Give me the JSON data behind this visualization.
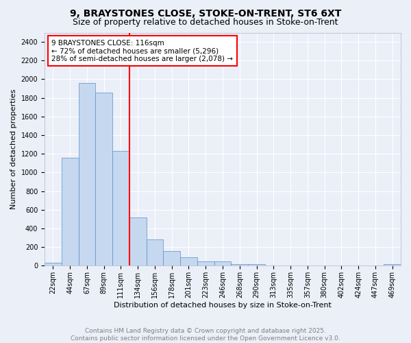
{
  "title_line1": "9, BRAYSTONES CLOSE, STOKE-ON-TRENT, ST6 6XT",
  "title_line2": "Size of property relative to detached houses in Stoke-on-Trent",
  "xlabel": "Distribution of detached houses by size in Stoke-on-Trent",
  "ylabel": "Number of detached properties",
  "bar_labels": [
    "22sqm",
    "44sqm",
    "67sqm",
    "89sqm",
    "111sqm",
    "134sqm",
    "156sqm",
    "178sqm",
    "201sqm",
    "223sqm",
    "246sqm",
    "268sqm",
    "290sqm",
    "313sqm",
    "335sqm",
    "357sqm",
    "380sqm",
    "402sqm",
    "424sqm",
    "447sqm",
    "469sqm"
  ],
  "bar_values": [
    30,
    1160,
    1960,
    1860,
    1230,
    520,
    280,
    155,
    95,
    50,
    50,
    20,
    15,
    5,
    2,
    2,
    2,
    2,
    1,
    1,
    15
  ],
  "bar_color": "#c5d8f0",
  "bar_edgecolor": "#5b8fc3",
  "bg_color": "#eaeff8",
  "grid_color": "#ffffff",
  "red_line_x": 4.5,
  "annotation_text": "9 BRAYSTONES CLOSE: 116sqm\n← 72% of detached houses are smaller (5,296)\n28% of semi-detached houses are larger (2,078) →",
  "annotation_box_edgecolor": "red",
  "annotation_box_facecolor": "white",
  "vline_color": "red",
  "ylim": [
    0,
    2500
  ],
  "yticks": [
    0,
    200,
    400,
    600,
    800,
    1000,
    1200,
    1400,
    1600,
    1800,
    2000,
    2200,
    2400
  ],
  "footer_line1": "Contains HM Land Registry data © Crown copyright and database right 2025.",
  "footer_line2": "Contains public sector information licensed under the Open Government Licence v3.0.",
  "title_fontsize": 10,
  "subtitle_fontsize": 9,
  "axis_label_fontsize": 8,
  "tick_fontsize": 7,
  "footer_fontsize": 6.5,
  "annotation_fontsize": 7.5
}
